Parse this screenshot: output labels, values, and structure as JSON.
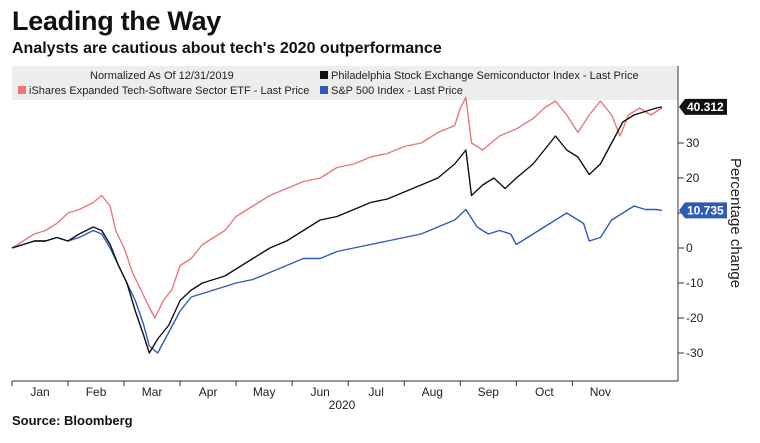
{
  "header": {
    "title": "Leading the Way",
    "subtitle": "Analysts are cautious about tech's 2020 outperformance",
    "source": "Source: Bloomberg"
  },
  "chart_data": {
    "type": "line",
    "title": "Leading the Way",
    "subtitle": "Analysts are cautious about tech's 2020 outperformance",
    "ylabel": "Percentage change",
    "xlabel": "2020",
    "note": "Normalized As Of 12/31/2019",
    "ylim": [
      -38,
      52
    ],
    "y_ticks": [
      -30,
      -20,
      -10,
      0,
      10,
      20,
      30
    ],
    "x_ticks": [
      "Jan",
      "Feb",
      "Mar",
      "Apr",
      "May",
      "Jun",
      "Jul",
      "Aug",
      "Sep",
      "Oct",
      "Nov"
    ],
    "x_month_range": [
      0,
      11.6
    ],
    "grid": false,
    "legend_position": "top",
    "series": [
      {
        "name": "iShares Expanded Tech-Software Sector ETF - Last Price",
        "color": "#e8787a",
        "last_value": null,
        "points": [
          [
            0,
            0
          ],
          [
            0.2,
            2
          ],
          [
            0.4,
            4
          ],
          [
            0.6,
            5
          ],
          [
            0.8,
            7
          ],
          [
            1.0,
            10
          ],
          [
            1.2,
            11
          ],
          [
            1.45,
            13
          ],
          [
            1.6,
            15
          ],
          [
            1.75,
            12
          ],
          [
            1.85,
            5
          ],
          [
            2.0,
            0
          ],
          [
            2.15,
            -7
          ],
          [
            2.3,
            -12
          ],
          [
            2.45,
            -17
          ],
          [
            2.55,
            -20
          ],
          [
            2.7,
            -15
          ],
          [
            2.85,
            -12
          ],
          [
            3.0,
            -5
          ],
          [
            3.2,
            -3
          ],
          [
            3.4,
            1
          ],
          [
            3.6,
            3
          ],
          [
            3.8,
            5
          ],
          [
            4.0,
            9
          ],
          [
            4.3,
            12
          ],
          [
            4.6,
            15
          ],
          [
            4.9,
            17
          ],
          [
            5.2,
            19
          ],
          [
            5.5,
            20
          ],
          [
            5.8,
            23
          ],
          [
            6.1,
            24
          ],
          [
            6.4,
            26
          ],
          [
            6.7,
            27
          ],
          [
            7.0,
            29
          ],
          [
            7.3,
            30
          ],
          [
            7.6,
            33
          ],
          [
            7.9,
            35
          ],
          [
            8.0,
            40
          ],
          [
            8.1,
            43
          ],
          [
            8.2,
            30
          ],
          [
            8.4,
            28
          ],
          [
            8.7,
            32
          ],
          [
            9.0,
            34
          ],
          [
            9.3,
            37
          ],
          [
            9.5,
            40
          ],
          [
            9.7,
            42
          ],
          [
            9.9,
            38
          ],
          [
            10.1,
            33
          ],
          [
            10.3,
            38
          ],
          [
            10.5,
            42
          ],
          [
            10.7,
            38
          ],
          [
            10.85,
            32
          ],
          [
            11.0,
            38
          ],
          [
            11.2,
            40
          ],
          [
            11.4,
            38
          ],
          [
            11.6,
            40
          ]
        ]
      },
      {
        "name": "Philadelphia Stock Exchange Semiconductor Index - Last Price",
        "color": "#111111",
        "last_value": "40.312",
        "points": [
          [
            0,
            0
          ],
          [
            0.2,
            1
          ],
          [
            0.4,
            2
          ],
          [
            0.6,
            2
          ],
          [
            0.8,
            3
          ],
          [
            1.0,
            2
          ],
          [
            1.2,
            4
          ],
          [
            1.45,
            6
          ],
          [
            1.6,
            5
          ],
          [
            1.75,
            1
          ],
          [
            1.9,
            -5
          ],
          [
            2.05,
            -10
          ],
          [
            2.2,
            -18
          ],
          [
            2.35,
            -25
          ],
          [
            2.45,
            -30
          ],
          [
            2.6,
            -26
          ],
          [
            2.8,
            -22
          ],
          [
            3.0,
            -15
          ],
          [
            3.2,
            -12
          ],
          [
            3.4,
            -10
          ],
          [
            3.6,
            -9
          ],
          [
            3.8,
            -8
          ],
          [
            4.0,
            -6
          ],
          [
            4.3,
            -3
          ],
          [
            4.6,
            0
          ],
          [
            4.9,
            2
          ],
          [
            5.2,
            5
          ],
          [
            5.5,
            8
          ],
          [
            5.8,
            9
          ],
          [
            6.1,
            11
          ],
          [
            6.4,
            13
          ],
          [
            6.7,
            14
          ],
          [
            7.0,
            16
          ],
          [
            7.3,
            18
          ],
          [
            7.6,
            20
          ],
          [
            7.9,
            24
          ],
          [
            8.1,
            28
          ],
          [
            8.2,
            15
          ],
          [
            8.4,
            18
          ],
          [
            8.6,
            20
          ],
          [
            8.8,
            17
          ],
          [
            9.0,
            20
          ],
          [
            9.3,
            24
          ],
          [
            9.5,
            28
          ],
          [
            9.7,
            32
          ],
          [
            9.9,
            28
          ],
          [
            10.1,
            26
          ],
          [
            10.3,
            21
          ],
          [
            10.5,
            24
          ],
          [
            10.7,
            30
          ],
          [
            10.9,
            36
          ],
          [
            11.1,
            38
          ],
          [
            11.3,
            39
          ],
          [
            11.5,
            40
          ],
          [
            11.6,
            40.312
          ]
        ]
      },
      {
        "name": "S&P 500 Index - Last Price",
        "color": "#2f5bb8",
        "last_value": "10.735",
        "points": [
          [
            0,
            0
          ],
          [
            0.2,
            1
          ],
          [
            0.4,
            2
          ],
          [
            0.6,
            2
          ],
          [
            0.8,
            3
          ],
          [
            1.0,
            2
          ],
          [
            1.2,
            3
          ],
          [
            1.45,
            5
          ],
          [
            1.6,
            4
          ],
          [
            1.75,
            0
          ],
          [
            1.9,
            -5
          ],
          [
            2.05,
            -10
          ],
          [
            2.2,
            -15
          ],
          [
            2.35,
            -22
          ],
          [
            2.45,
            -28
          ],
          [
            2.6,
            -30
          ],
          [
            2.8,
            -24
          ],
          [
            3.0,
            -18
          ],
          [
            3.2,
            -14
          ],
          [
            3.4,
            -13
          ],
          [
            3.6,
            -12
          ],
          [
            3.8,
            -11
          ],
          [
            4.0,
            -10
          ],
          [
            4.3,
            -9
          ],
          [
            4.6,
            -7
          ],
          [
            4.9,
            -5
          ],
          [
            5.2,
            -3
          ],
          [
            5.5,
            -3
          ],
          [
            5.8,
            -1
          ],
          [
            6.1,
            0
          ],
          [
            6.4,
            1
          ],
          [
            6.7,
            2
          ],
          [
            7.0,
            3
          ],
          [
            7.3,
            4
          ],
          [
            7.6,
            6
          ],
          [
            7.9,
            8
          ],
          [
            8.1,
            11
          ],
          [
            8.3,
            6
          ],
          [
            8.5,
            4
          ],
          [
            8.7,
            5
          ],
          [
            8.9,
            4
          ],
          [
            9.0,
            1
          ],
          [
            9.3,
            4
          ],
          [
            9.5,
            6
          ],
          [
            9.7,
            8
          ],
          [
            9.9,
            10
          ],
          [
            10.0,
            9
          ],
          [
            10.2,
            7
          ],
          [
            10.3,
            2
          ],
          [
            10.5,
            3
          ],
          [
            10.7,
            8
          ],
          [
            10.9,
            10
          ],
          [
            11.1,
            12
          ],
          [
            11.3,
            11
          ],
          [
            11.5,
            11
          ],
          [
            11.6,
            10.735
          ]
        ]
      }
    ]
  }
}
